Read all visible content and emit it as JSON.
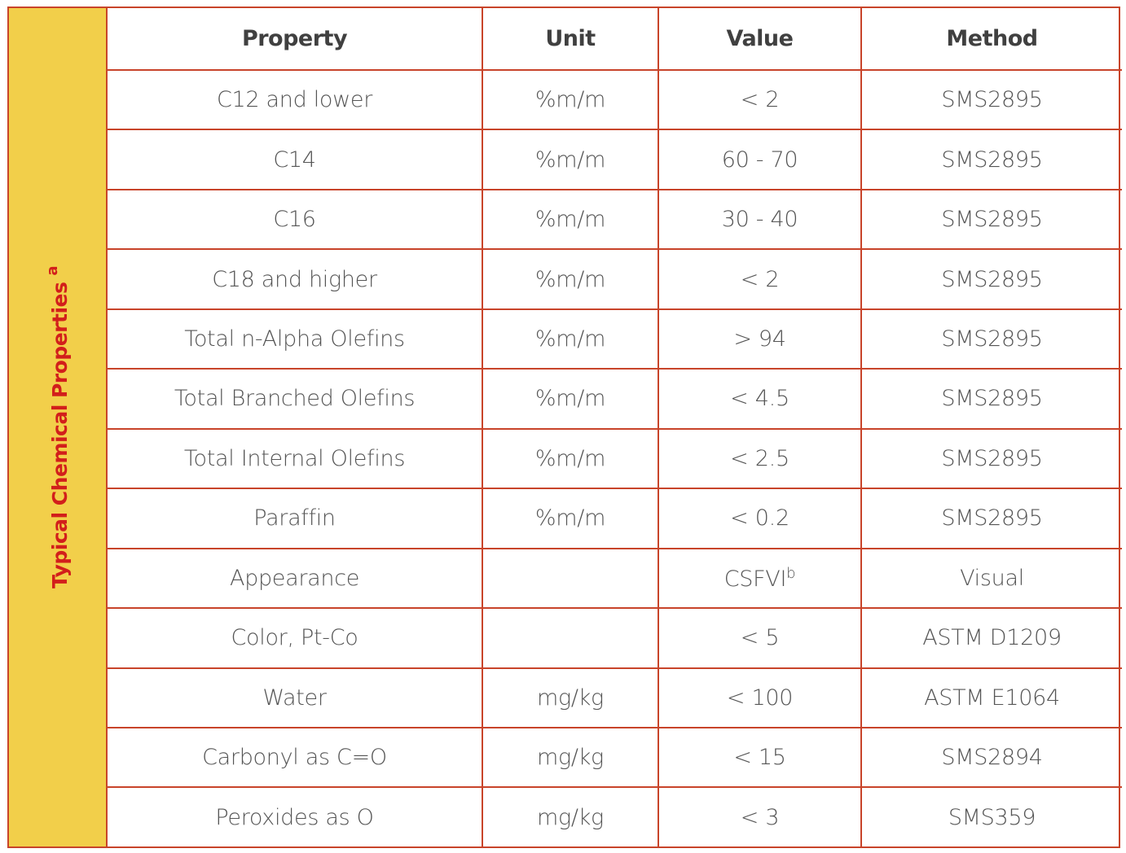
{
  "side_label": {
    "text": "Typical Chemical Properties",
    "footnote": "a"
  },
  "headers": [
    "Property",
    "Unit",
    "Value",
    "Method"
  ],
  "rows": [
    {
      "property": "C12 and lower",
      "unit": "%m/m",
      "value": "< 2",
      "value_sup": "",
      "method": "SMS2895"
    },
    {
      "property": "C14",
      "unit": "%m/m",
      "value": "60 - 70",
      "value_sup": "",
      "method": "SMS2895"
    },
    {
      "property": "C16",
      "unit": "%m/m",
      "value": "30 - 40",
      "value_sup": "",
      "method": "SMS2895"
    },
    {
      "property": "C18 and higher",
      "unit": "%m/m",
      "value": "< 2",
      "value_sup": "",
      "method": "SMS2895"
    },
    {
      "property": "Total n-Alpha Olefins",
      "unit": "%m/m",
      "value": "> 94",
      "value_sup": "",
      "method": "SMS2895"
    },
    {
      "property": "Total Branched Olefins",
      "unit": "%m/m",
      "value": "< 4.5",
      "value_sup": "",
      "method": "SMS2895"
    },
    {
      "property": "Total Internal Olefins",
      "unit": "%m/m",
      "value": "< 2.5",
      "value_sup": "",
      "method": "SMS2895"
    },
    {
      "property": "Paraffin",
      "unit": "%m/m",
      "value": "< 0.2",
      "value_sup": "",
      "method": "SMS2895"
    },
    {
      "property": "Appearance",
      "unit": "",
      "value": "CSFVI",
      "value_sup": "b",
      "method": "Visual"
    },
    {
      "property": "Color, Pt-Co",
      "unit": "",
      "value": "< 5",
      "value_sup": "",
      "method": "ASTM D1209"
    },
    {
      "property": "Water",
      "unit": "mg/kg",
      "value": "< 100",
      "value_sup": "",
      "method": "ASTM E1064"
    },
    {
      "property": "Carbonyl as C=O",
      "unit": "mg/kg",
      "value": "< 15",
      "value_sup": "",
      "method": "SMS2894"
    },
    {
      "property": "Peroxides as O",
      "unit": "mg/kg",
      "value": "< 3",
      "value_sup": "",
      "method": "SMS359"
    }
  ],
  "colors": {
    "border": "#c8442a",
    "side_band": "#f2cf4a",
    "side_text": "#d21f1b",
    "header_text": "#404040",
    "body_text": "#555555"
  }
}
